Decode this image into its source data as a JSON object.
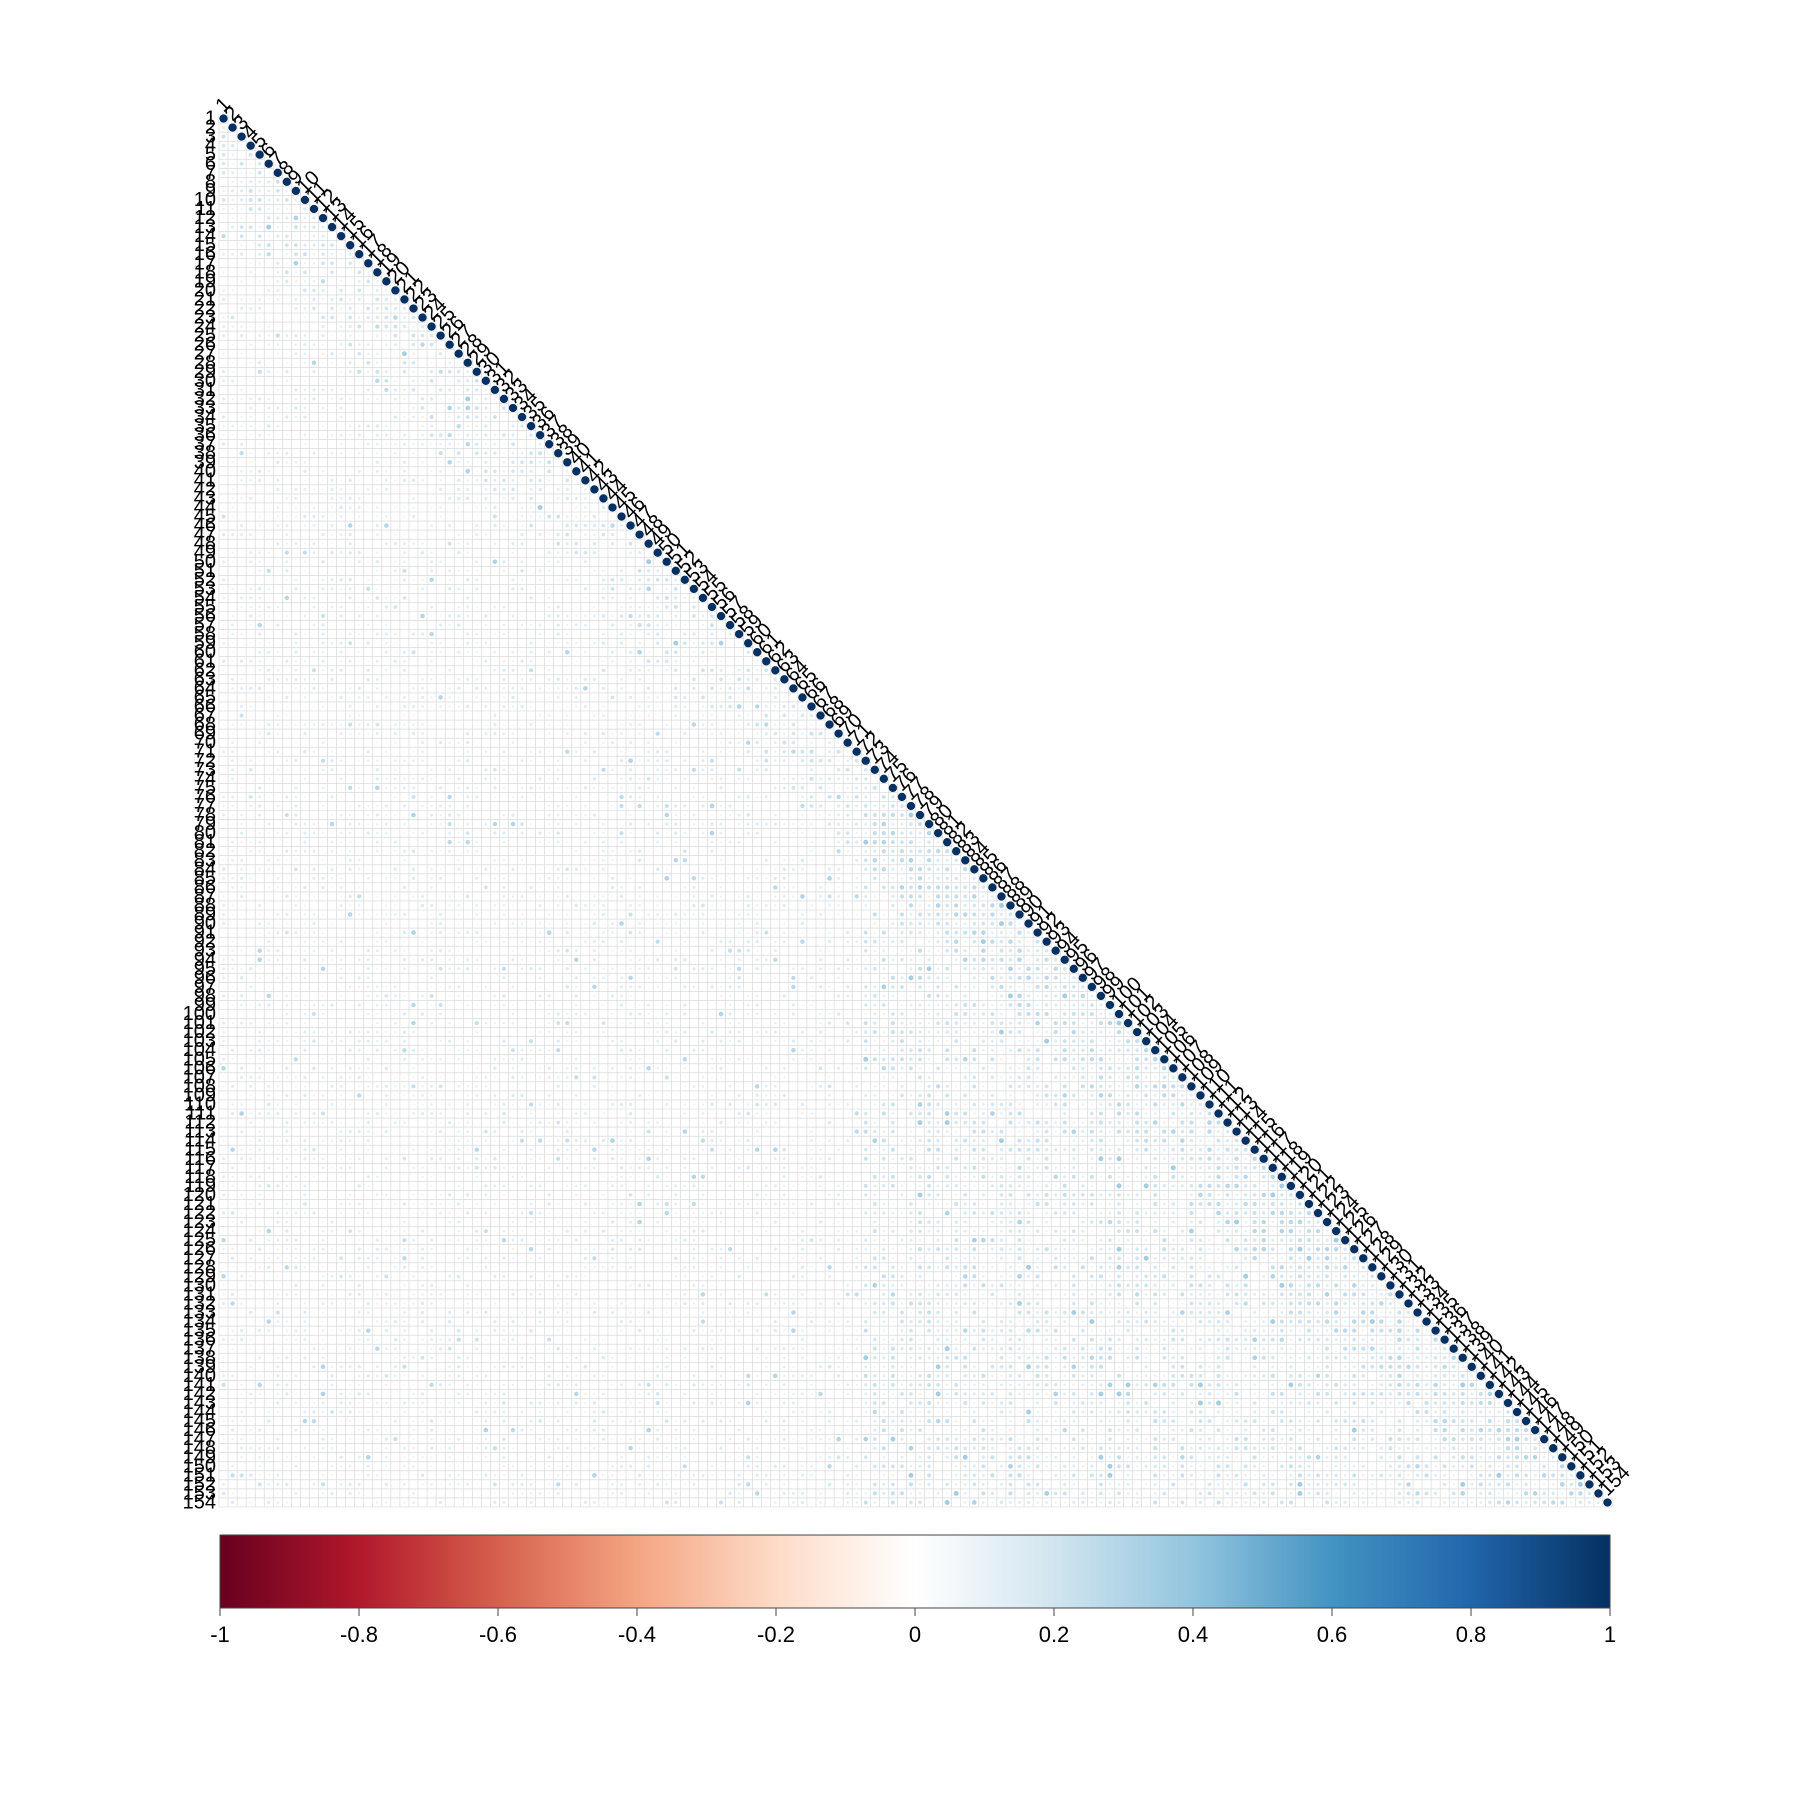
{
  "chart_data": {
    "type": "heatmap",
    "layout": "lower-triangle-correlation",
    "n": 154,
    "row_labels_start": 1,
    "row_labels_end": 154,
    "value_range": [
      -1,
      1
    ],
    "diagonal_value": 1,
    "colorbar": {
      "ticks": [
        "-1",
        "-0.8",
        "-0.6",
        "-0.4",
        "-0.2",
        "0",
        "0.2",
        "0.4",
        "0.6",
        "0.8",
        "1"
      ],
      "colors": [
        "#67001f",
        "#b2182b",
        "#d6604d",
        "#f4a582",
        "#fddbc7",
        "#ffffff",
        "#d1e5f0",
        "#92c5de",
        "#4393c3",
        "#2166ac",
        "#053061"
      ]
    },
    "typical_offdiagonal_range": [
      -0.1,
      0.35
    ],
    "grid": true
  }
}
